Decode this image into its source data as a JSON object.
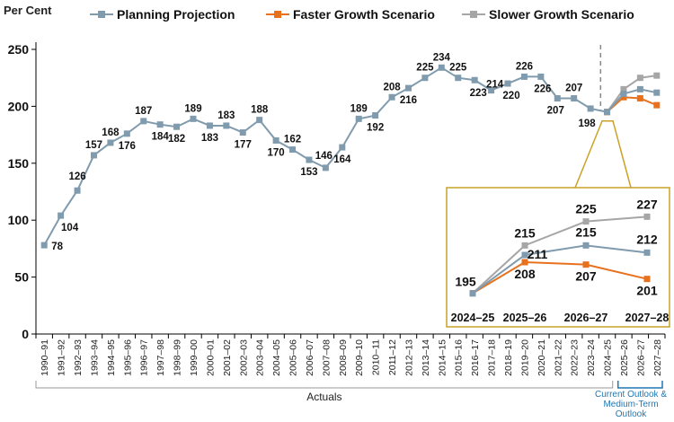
{
  "chart_data": {
    "type": "line",
    "ylabel": "Per Cent",
    "ylim": [
      0,
      250
    ],
    "yticks": [
      0,
      50,
      100,
      150,
      200,
      250
    ],
    "categories": [
      "1990–91",
      "1991–92",
      "1992–93",
      "1993–94",
      "1994–95",
      "1995–96",
      "1996–97",
      "1997–98",
      "1998–99",
      "1999–00",
      "2000–01",
      "2001–02",
      "2002–03",
      "2003–04",
      "2004–05",
      "2005–06",
      "2006–07",
      "2007–08",
      "2008–09",
      "2009–10",
      "2010–11",
      "2011–12",
      "2012–13",
      "2013–14",
      "2014–15",
      "2015–16",
      "2016–17",
      "2017–18",
      "2018–19",
      "2019–20",
      "2020–21",
      "2021–22",
      "2022–23",
      "2023–24",
      "2024–25",
      "2025–26",
      "2026–27",
      "2027–28"
    ],
    "series": [
      {
        "name": "Planning Projection",
        "color": "#7f9bad",
        "values": [
          78,
          104,
          126,
          157,
          168,
          176,
          187,
          184,
          182,
          189,
          183,
          183,
          177,
          188,
          170,
          162,
          153,
          146,
          164,
          189,
          192,
          208,
          216,
          225,
          234,
          225,
          223,
          214,
          220,
          226,
          226,
          207,
          207,
          198,
          195,
          211,
          215,
          212
        ],
        "labels": [
          "78",
          "104",
          "126",
          "157",
          "168",
          "176",
          "187",
          "184",
          "182",
          "189",
          "183",
          "183",
          "177",
          "188",
          "170",
          "162",
          "153",
          "146",
          "164",
          "189",
          "192",
          "208",
          "216",
          "225",
          "234",
          "225",
          "223",
          "214",
          "220",
          "226",
          "226",
          "207",
          "207",
          "198",
          "",
          "",
          "",
          ""
        ]
      },
      {
        "name": "Faster Growth Scenario",
        "color": "#e8711e",
        "values": [
          null,
          null,
          null,
          null,
          null,
          null,
          null,
          null,
          null,
          null,
          null,
          null,
          null,
          null,
          null,
          null,
          null,
          null,
          null,
          null,
          null,
          null,
          null,
          null,
          null,
          null,
          null,
          null,
          null,
          null,
          null,
          null,
          null,
          null,
          195,
          208,
          207,
          201
        ]
      },
      {
        "name": "Slower Growth Scenario",
        "color": "#a6a6a6",
        "values": [
          null,
          null,
          null,
          null,
          null,
          null,
          null,
          null,
          null,
          null,
          null,
          null,
          null,
          null,
          null,
          null,
          null,
          null,
          null,
          null,
          null,
          null,
          null,
          null,
          null,
          null,
          null,
          null,
          null,
          null,
          null,
          null,
          null,
          null,
          195,
          215,
          225,
          227
        ]
      }
    ],
    "legend": [
      "Planning Projection",
      "Faster Growth Scenario",
      "Slower Growth Scenario"
    ],
    "legend_position": "top",
    "inset": {
      "categories": [
        "2024–25",
        "2025–26",
        "2026–27",
        "2027–28"
      ],
      "planning": [
        195,
        211,
        215,
        212
      ],
      "faster": [
        195,
        208,
        207,
        201
      ],
      "slower": [
        195,
        215,
        225,
        227
      ],
      "labels": {
        "start": "195",
        "slower": [
          "215",
          "225",
          "227"
        ],
        "planning": [
          "211",
          "215",
          "212"
        ],
        "faster": [
          "208",
          "207",
          "201"
        ]
      },
      "border_color": "#c9a227"
    },
    "bracket_labels": {
      "actuals": "Actuals",
      "outlook": [
        "Current Outlook &",
        "Medium-Term",
        "Outlook"
      ]
    }
  }
}
